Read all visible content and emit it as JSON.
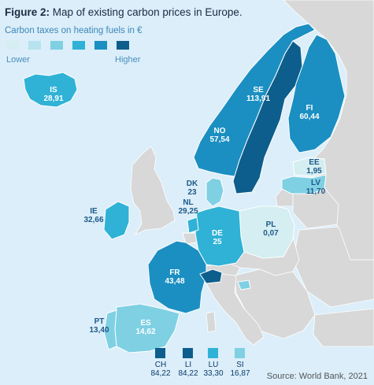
{
  "figure": {
    "label": "Figure 2:",
    "title": "Map of existing carbon prices in Europe.",
    "subtitle": "Carbon taxes on heating fuels in €",
    "source": "Source: World Bank, 2021"
  },
  "legend": {
    "low_label": "Lower",
    "high_label": "Higher",
    "colors": [
      "#d4eef1",
      "#b6e3ee",
      "#7fd0e3",
      "#2fb2d6",
      "#1b8fc2",
      "#0d5e8c"
    ]
  },
  "colors": {
    "sea": "#dbeef9",
    "land_other": "#d8d8d8",
    "border": "#ffffff"
  },
  "countries": [
    {
      "code": "IS",
      "value": "28,91",
      "color": "#2fb2d6"
    },
    {
      "code": "SE",
      "value": "113,91",
      "color": "#0d5e8c"
    },
    {
      "code": "FI",
      "value": "60,44",
      "color": "#1b8fc2"
    },
    {
      "code": "NO",
      "value": "57,54",
      "color": "#1b8fc2"
    },
    {
      "code": "EE",
      "value": "1,95",
      "color": "#d4eef1"
    },
    {
      "code": "LV",
      "value": "11,70",
      "color": "#7fd0e3"
    },
    {
      "code": "DK",
      "value": "23",
      "color": "#7fd0e3"
    },
    {
      "code": "NL",
      "value": "29,25",
      "color": "#2fb2d6"
    },
    {
      "code": "IE",
      "value": "32,66",
      "color": "#2fb2d6"
    },
    {
      "code": "PL",
      "value": "0,07",
      "color": "#d4eef1"
    },
    {
      "code": "DE",
      "value": "25",
      "color": "#2fb2d6"
    },
    {
      "code": "FR",
      "value": "43,48",
      "color": "#1b8fc2"
    },
    {
      "code": "PT",
      "value": "13,40",
      "color": "#7fd0e3"
    },
    {
      "code": "ES",
      "value": "14,62",
      "color": "#7fd0e3"
    }
  ],
  "small_states": [
    {
      "code": "CH",
      "value": "84,22",
      "color": "#0d5e8c"
    },
    {
      "code": "LI",
      "value": "84,22",
      "color": "#0d5e8c"
    },
    {
      "code": "LU",
      "value": "33,30",
      "color": "#2fb2d6"
    },
    {
      "code": "SI",
      "value": "16,87",
      "color": "#7fd0e3"
    }
  ]
}
